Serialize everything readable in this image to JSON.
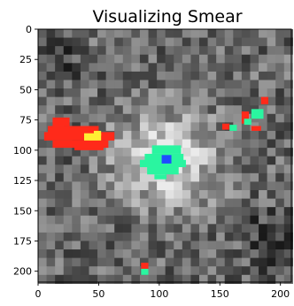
{
  "chart_data": {
    "type": "heatmap",
    "title": "Visualizing Smear",
    "xlabel": "",
    "ylabel": "",
    "xlim": [
      0,
      209
    ],
    "ylim": [
      209,
      0
    ],
    "x_ticks": [
      0,
      50,
      100,
      150,
      200
    ],
    "y_ticks": [
      0,
      25,
      50,
      75,
      100,
      125,
      150,
      175,
      200
    ],
    "x_tick_labels": [
      "0",
      "50",
      "100",
      "150",
      "200"
    ],
    "y_tick_labels": [
      "0",
      "25",
      "50",
      "75",
      "100",
      "125",
      "150",
      "175",
      "200"
    ],
    "grid": false,
    "legend": false,
    "pixel_size": 7,
    "background_colormap": "gray",
    "highlight_colormap": "jet",
    "regions": [
      {
        "name": "",
        "color": "#ff2a1a",
        "description": "elongated streak near x 10-60, y 80-95"
      },
      {
        "name": "",
        "color": "#ffee33",
        "description": "bright core near x 40-55, y 88"
      },
      {
        "name": "",
        "color": "#2af5a0",
        "description": "blob near x 88-115, y 95-120"
      },
      {
        "name": "",
        "color": "#1f4cff",
        "description": "core near x 106, y 107"
      },
      {
        "name": "",
        "color": "#ff2a1a",
        "description": "small patches near x 150-185, y 55-85"
      },
      {
        "name": "",
        "color": "#2af5a0",
        "description": "small patches near x 155-180, y 70-85"
      },
      {
        "name": "",
        "color": "#ff2a1a",
        "description": "tiny patch near x 88, y 196"
      },
      {
        "name": "",
        "color": "#2af5a0",
        "description": "tiny patch near x 88, y 203"
      }
    ]
  }
}
